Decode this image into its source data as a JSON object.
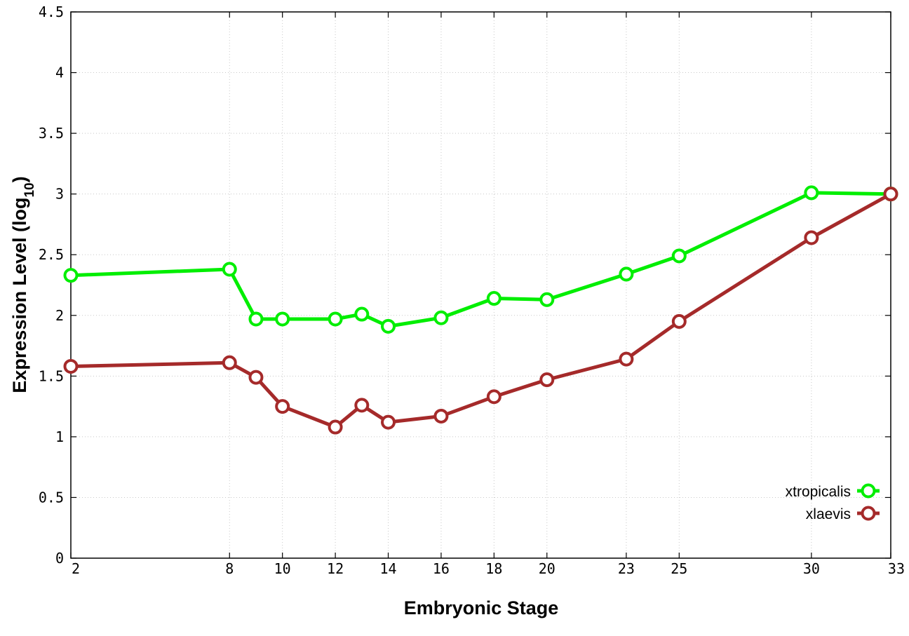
{
  "chart_data": {
    "type": "line",
    "xlabel": "Embryonic Stage",
    "ylabel_main": "Expression Level (log",
    "ylabel_sub": "10",
    "ylabel_close": ")",
    "xlim": [
      2,
      33
    ],
    "ylim": [
      0,
      4.5
    ],
    "x_ticks": [
      2,
      8,
      10,
      12,
      14,
      16,
      18,
      20,
      23,
      25,
      30,
      33
    ],
    "x_tick_labels": [
      "2",
      "8",
      "10",
      "12",
      "14",
      "16",
      "18",
      "20",
      "23",
      "25",
      "30",
      "33"
    ],
    "y_ticks": [
      0,
      0.5,
      1,
      1.5,
      2,
      2.5,
      3,
      3.5,
      4,
      4.5
    ],
    "y_tick_labels": [
      "0",
      "0.5",
      "1",
      "1.5",
      "2",
      "2.5",
      "3",
      "3.5",
      "4",
      "4.5"
    ],
    "grid": true,
    "legend_position": "bottom-right",
    "series": [
      {
        "name": "xtropicalis",
        "color": "#00ee00",
        "marker": "circle",
        "x": [
          2,
          8,
          9,
          10,
          12,
          13,
          14,
          16,
          18,
          20,
          23,
          25,
          30,
          33
        ],
        "y": [
          2.33,
          2.38,
          1.97,
          1.97,
          1.97,
          2.01,
          1.91,
          1.98,
          2.14,
          2.13,
          2.34,
          2.49,
          3.01,
          3.0
        ]
      },
      {
        "name": "xlaevis",
        "color": "#a52a2a",
        "marker": "circle",
        "x": [
          2,
          8,
          9,
          10,
          12,
          13,
          14,
          16,
          18,
          20,
          23,
          25,
          30,
          33
        ],
        "y": [
          1.58,
          1.61,
          1.49,
          1.25,
          1.08,
          1.26,
          1.12,
          1.17,
          1.33,
          1.47,
          1.64,
          1.95,
          2.64,
          3.0
        ]
      }
    ]
  }
}
